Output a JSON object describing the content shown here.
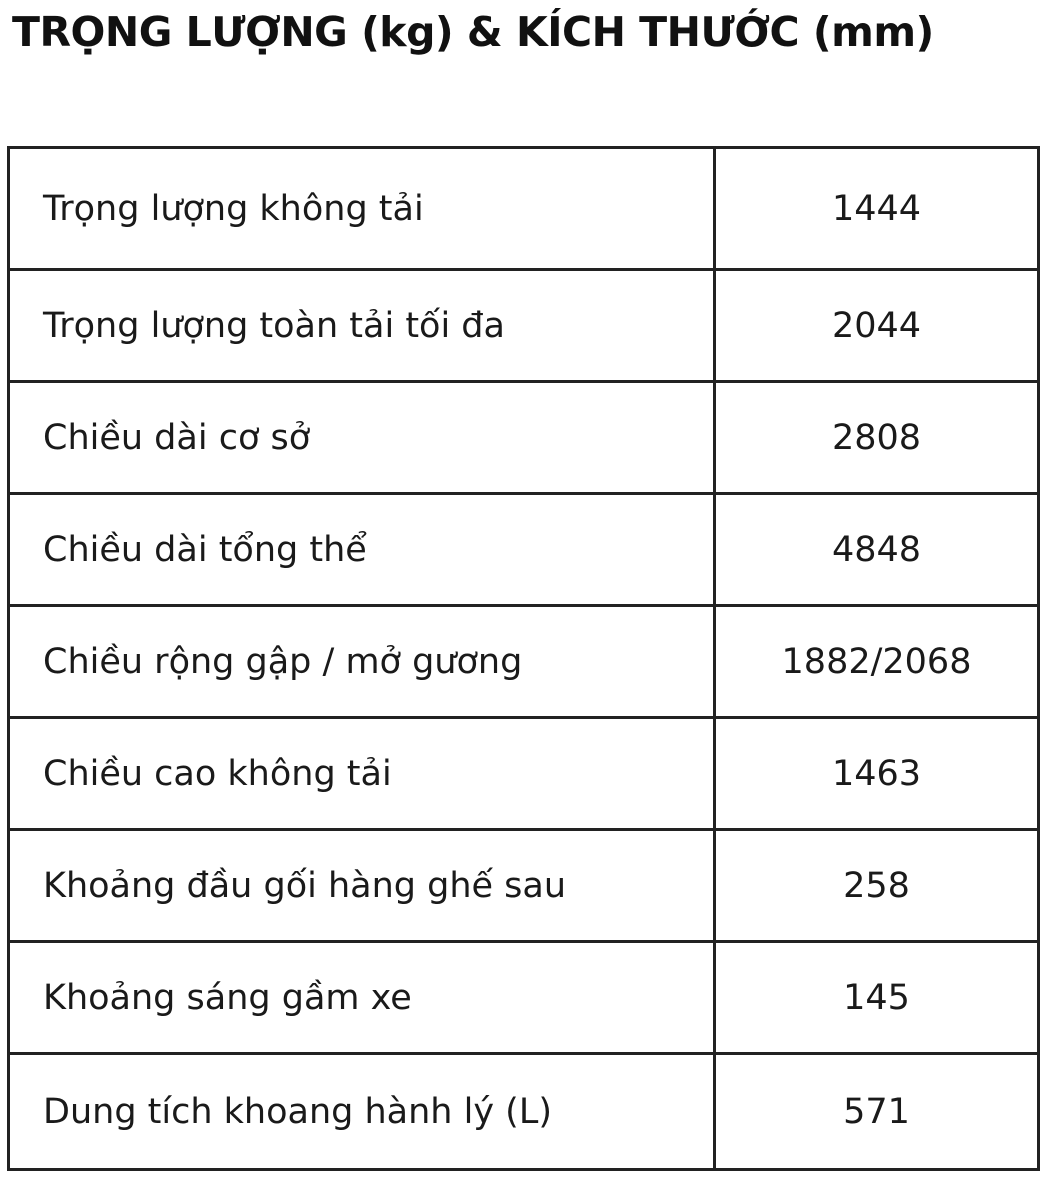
{
  "title": "TRỌNG LƯỢNG (kg) & KÍCH THƯỚC (mm)",
  "rows": [
    {
      "label": "Trọng lượng không tải",
      "value": "1444"
    },
    {
      "label": "Trọng lượng toàn tải tối đa",
      "value": "2044"
    },
    {
      "label": "Chiều dài cơ sở",
      "value": "2808"
    },
    {
      "label": "Chiều dài tổng thể",
      "value": "4848"
    },
    {
      "label": "Chiều rộng gập / mở gương",
      "value": "1882/2068"
    },
    {
      "label": "Chiều cao không tải",
      "value": "1463"
    },
    {
      "label": "Khoảng đầu gối hàng ghế sau",
      "value": "258"
    },
    {
      "label": "Khoảng sáng gầm xe",
      "value": "145"
    },
    {
      "label": "Dung tích khoang hành lý (L)",
      "value": "571"
    }
  ]
}
